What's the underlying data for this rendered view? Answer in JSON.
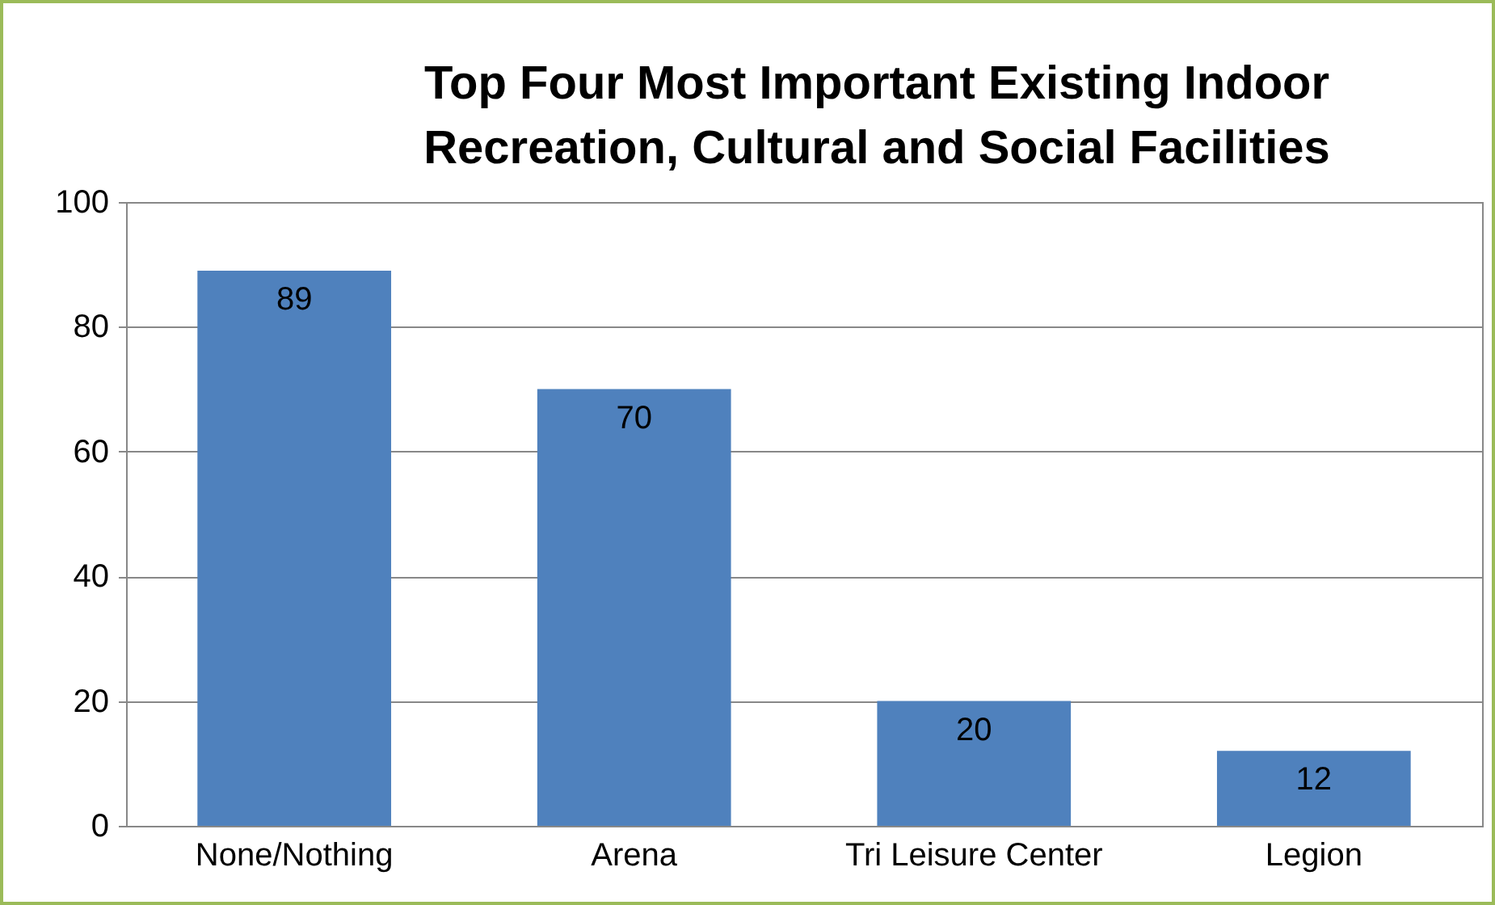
{
  "chart_data": {
    "type": "bar",
    "title": "Top Four Most Important Existing Indoor\nRecreation, Cultural and Social Facilities",
    "categories": [
      "None/Nothing",
      "Arena",
      "Tri Leisure Center",
      "Legion"
    ],
    "values": [
      89,
      70,
      20,
      12
    ],
    "color": "#4f81bd",
    "ylim": [
      0,
      100
    ],
    "yticks": [
      0,
      20,
      40,
      60,
      80,
      100
    ],
    "grid": true,
    "data_labels": true
  }
}
